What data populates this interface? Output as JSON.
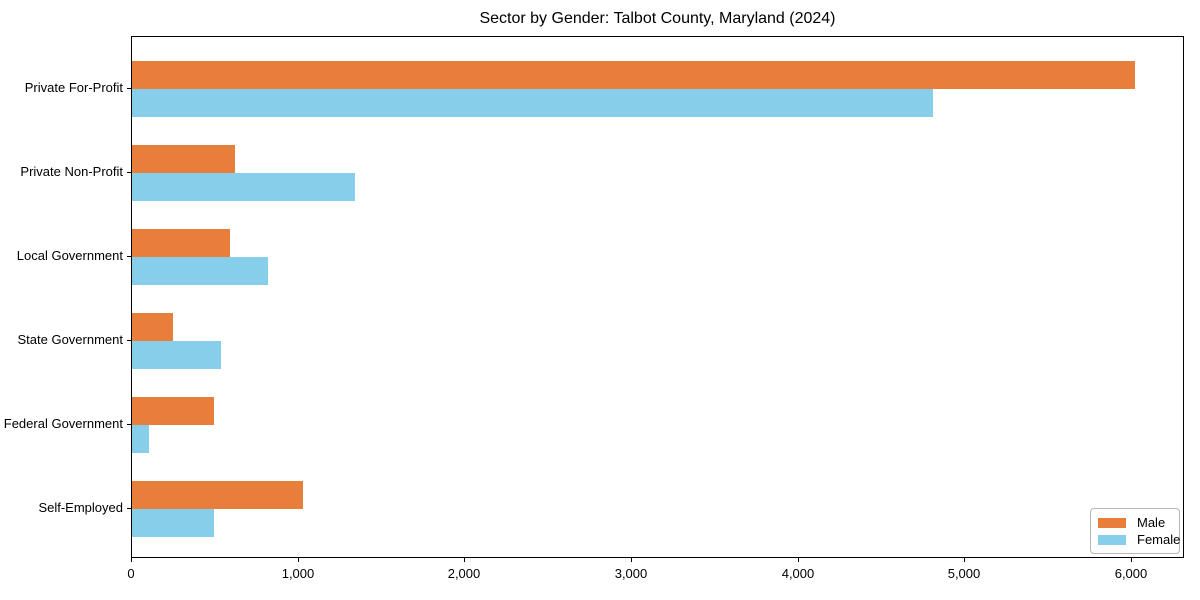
{
  "chart_data": {
    "type": "bar",
    "orientation": "horizontal",
    "title": "Sector by Gender: Talbot County, Maryland (2024)",
    "categories": [
      "Private For-Profit",
      "Private Non-Profit",
      "Local Government",
      "State Government",
      "Federal Government",
      "Self-Employed"
    ],
    "series": [
      {
        "name": "Male",
        "color": "#E87E3C",
        "values": [
          6020,
          615,
          590,
          245,
          490,
          1025
        ]
      },
      {
        "name": "Female",
        "color": "#87CEEB",
        "values": [
          4805,
          1335,
          815,
          535,
          100,
          490
        ]
      }
    ],
    "xlabel": "",
    "ylabel": "",
    "xlim": [
      0,
      6318
    ],
    "xticks": [
      0,
      1000,
      2000,
      3000,
      4000,
      5000,
      6000
    ],
    "xtick_labels": [
      "0",
      "1,000",
      "2,000",
      "3,000",
      "4,000",
      "5,000",
      "6,000"
    ],
    "grid": false,
    "legend": {
      "position": "lower-right",
      "entries": [
        "Male",
        "Female"
      ]
    },
    "colors": {
      "spine": "#000000",
      "text": "#000000",
      "legend_border": "#b7b7b7"
    }
  }
}
